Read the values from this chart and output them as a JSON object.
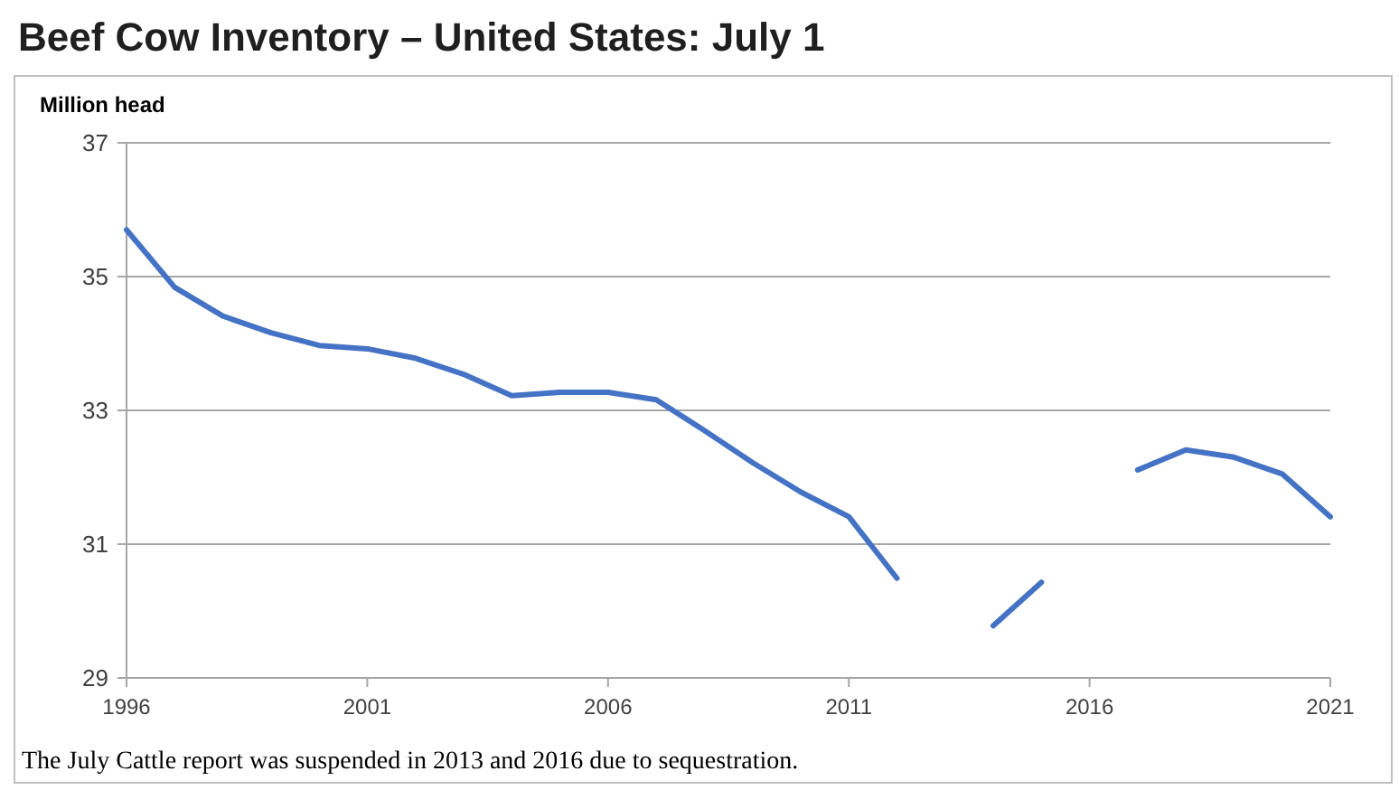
{
  "chart_data": {
    "type": "line",
    "title": "Beef Cow Inventory – United States: July 1",
    "ylabel": "Million head",
    "annotations": [
      "The July Cattle report was suspended in 2013 and 2016 due to sequestration."
    ],
    "x": [
      1996,
      1997,
      1998,
      1999,
      2000,
      2001,
      2002,
      2003,
      2004,
      2005,
      2006,
      2007,
      2008,
      2009,
      2010,
      2011,
      2012,
      2013,
      2014,
      2015,
      2016,
      2017,
      2018,
      2019,
      2020,
      2021
    ],
    "series": [
      {
        "color": "#4472c4",
        "values": [
          35.7,
          34.84,
          34.41,
          34.16,
          33.97,
          33.92,
          33.78,
          33.54,
          33.22,
          33.27,
          33.27,
          33.16,
          32.7,
          32.22,
          31.78,
          31.41,
          30.49,
          null,
          29.78,
          30.43,
          null,
          32.11,
          32.41,
          32.3,
          32.05,
          31.41
        ]
      }
    ],
    "xlim": [
      1996,
      2021
    ],
    "xticks": [
      1996,
      2001,
      2006,
      2011,
      2016,
      2021
    ],
    "ylim": [
      29,
      37
    ],
    "yticks": [
      29,
      31,
      33,
      35,
      37
    ],
    "grid": "y",
    "marker": "none",
    "line_style": "solid"
  }
}
